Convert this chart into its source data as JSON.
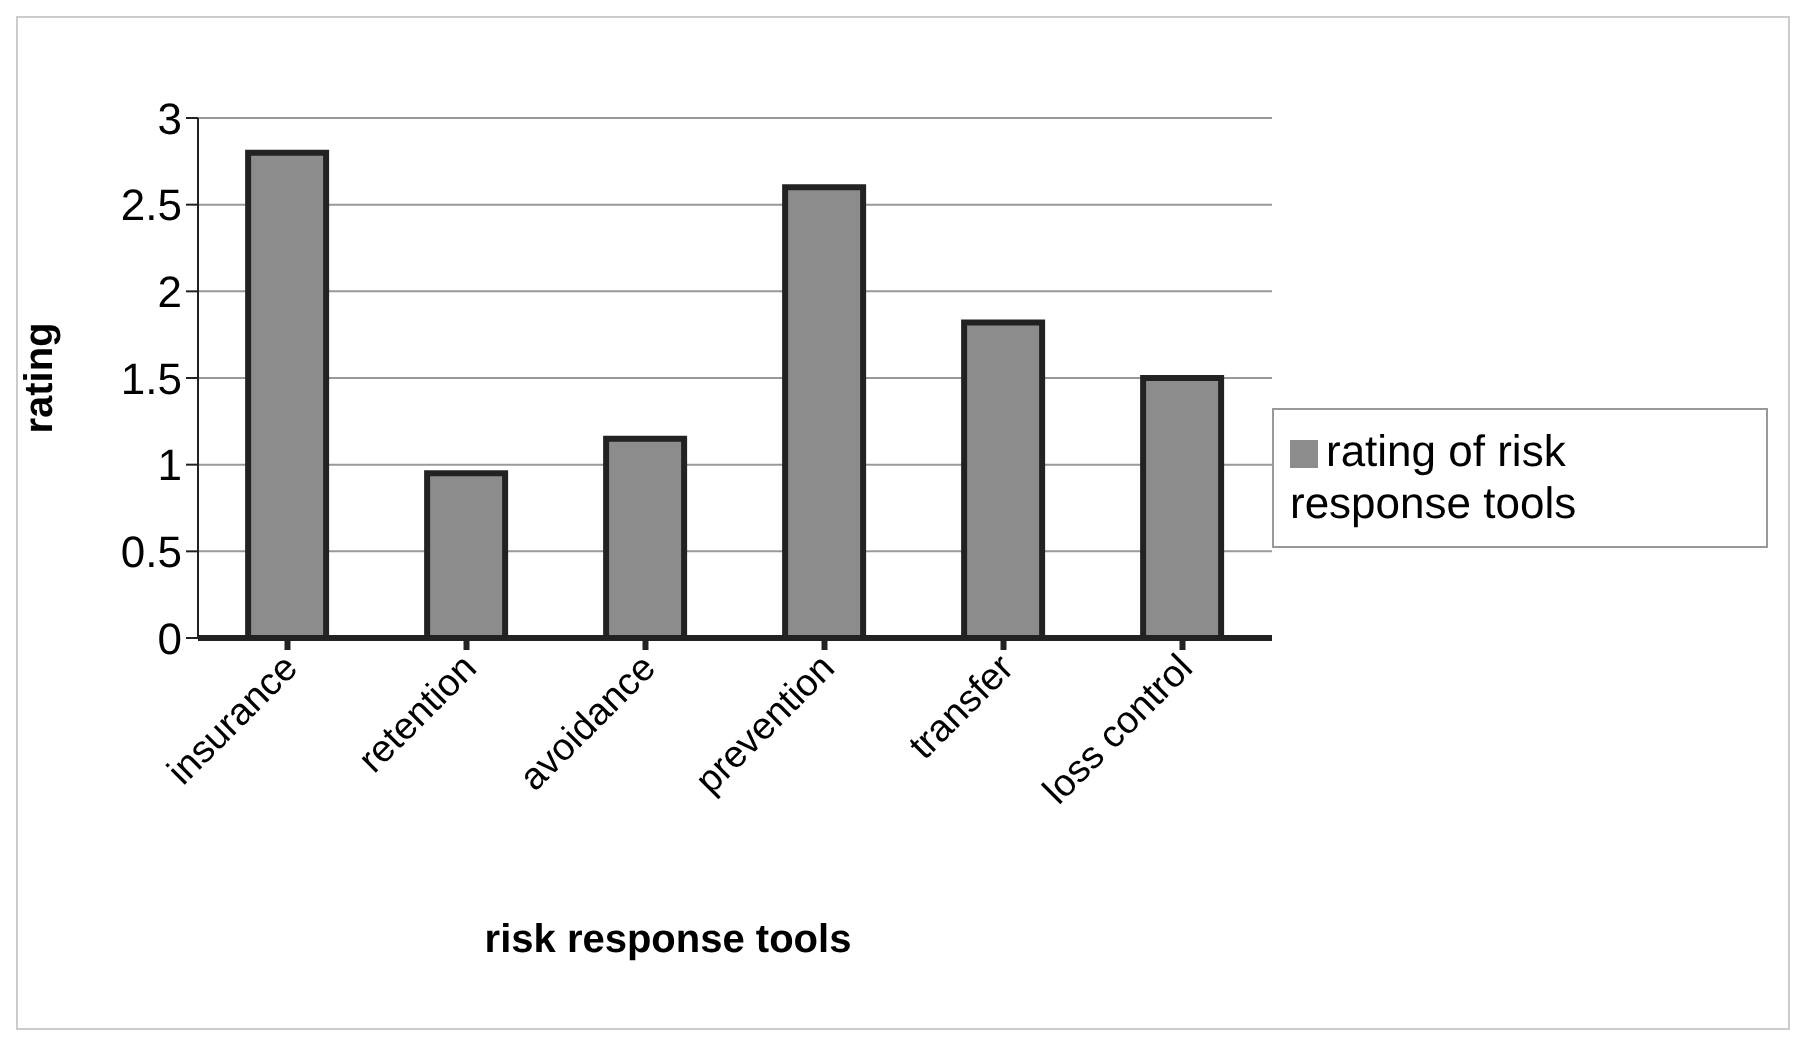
{
  "chart_data": {
    "type": "bar",
    "xlabel": "risk response tools",
    "ylabel": "rating",
    "categories": [
      "insurance",
      "retention",
      "avoidance",
      "prevention",
      "transfer",
      "loss control"
    ],
    "series": [
      {
        "name": "rating of risk response tools",
        "color": "#8c8c8c",
        "values": [
          2.8,
          0.95,
          1.15,
          2.6,
          1.82,
          1.5
        ]
      }
    ],
    "ylim": [
      0,
      3
    ],
    "yticks": [
      0,
      0.5,
      1,
      1.5,
      2,
      2.5,
      3
    ],
    "grid": "y",
    "legend": "right"
  }
}
